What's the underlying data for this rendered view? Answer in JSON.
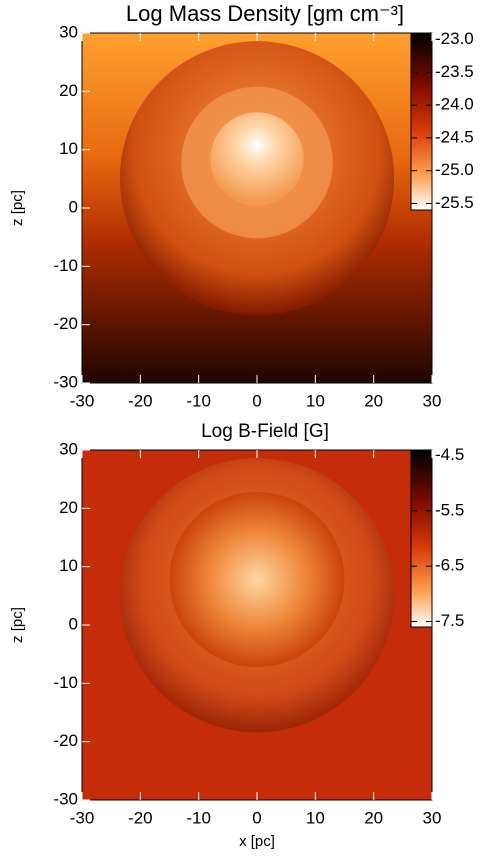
{
  "chart_data": [
    {
      "type": "heatmap",
      "title": "Log Mass Density [gm cm⁻³]",
      "ylabel": "z [pc]",
      "xlim": [
        -30,
        30
      ],
      "ylim": [
        -30,
        30
      ],
      "xticks": [
        -30,
        -20,
        -10,
        0,
        10,
        20,
        30
      ],
      "yticks": [
        -30,
        -20,
        -10,
        0,
        10,
        20,
        30
      ],
      "colorbar": {
        "lim": [
          -25.6,
          -22.9
        ],
        "ticks": [
          {
            "value": -23,
            "label": "-23.0"
          },
          {
            "value": -23.5,
            "label": "-23.5"
          },
          {
            "value": -24,
            "label": "-24.0"
          },
          {
            "value": -24.5,
            "label": "-24.5"
          },
          {
            "value": -25,
            "label": "-25.0"
          },
          {
            "value": -25.5,
            "label": "-25.5"
          }
        ]
      }
    },
    {
      "type": "heatmap",
      "title": "Log B-Field [G]",
      "ylabel": "z [pc]",
      "xlabel": "x [pc]",
      "xlim": [
        -30,
        30
      ],
      "ylim": [
        -30,
        30
      ],
      "xticks": [
        -30,
        -20,
        -10,
        0,
        10,
        20,
        30
      ],
      "yticks": [
        -30,
        -20,
        -10,
        0,
        10,
        20,
        30
      ],
      "colorbar": {
        "lim": [
          -7.6,
          -4.4
        ],
        "ticks": [
          -4.5,
          -5.5,
          -6.5,
          -7.5
        ]
      }
    }
  ]
}
